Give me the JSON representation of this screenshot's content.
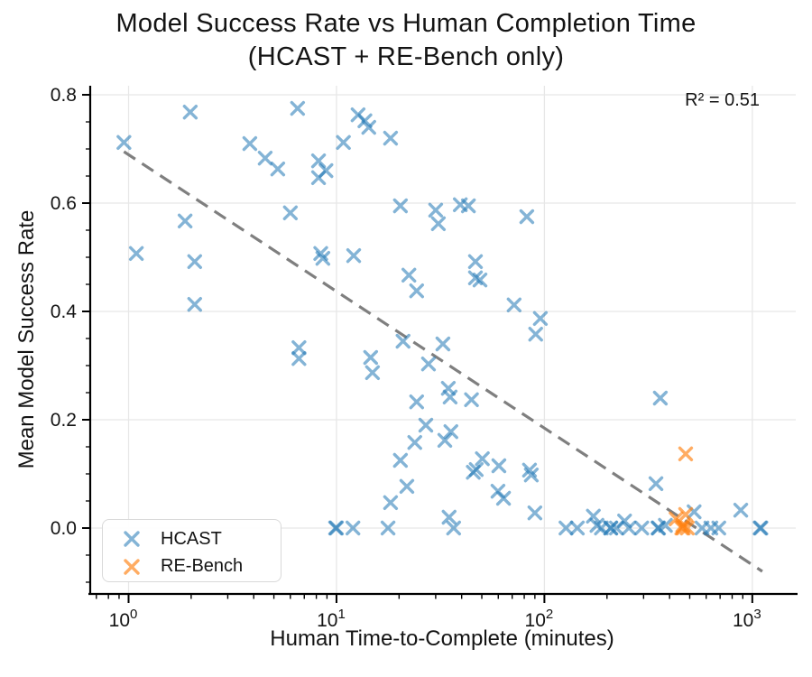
{
  "title": {
    "line1": "Model Success Rate vs Human Completion Time",
    "line2": "(HCAST + RE-Bench only)"
  },
  "annotation": {
    "r_squared": "R² = 0.51"
  },
  "axes": {
    "x_tick_exponents": [
      0,
      1,
      2,
      3
    ],
    "x_tick_base": "10",
    "y_ticks": [
      "0.0",
      "0.2",
      "0.4",
      "0.6",
      "0.8"
    ]
  },
  "legend": {
    "items": [
      {
        "label": "HCAST",
        "color": "#1f77b4",
        "opacity": 0.55
      },
      {
        "label": "RE-Bench",
        "color": "#ff7f0e",
        "opacity": 0.65
      }
    ]
  },
  "chart_data": {
    "type": "scatter",
    "title": "Model Success Rate vs Human Completion Time (HCAST + RE-Bench only)",
    "xlabel": "Human Time-to-Complete (minutes)",
    "ylabel": "Mean Model Success Rate",
    "xscale": "log",
    "xlim": [
      0.654,
      1586
    ],
    "ylim": [
      -0.1217,
      0.8167
    ],
    "grid": true,
    "legend_position": "lower left",
    "r_squared": 0.51,
    "trendline": {
      "style": "dashed",
      "color": "#7f7f7f",
      "x1": 0.95,
      "y1": 0.695,
      "x2": 1117,
      "y2": -0.08
    },
    "series": [
      {
        "name": "HCAST",
        "marker": "x",
        "color": "#1f77b4",
        "opacity": 0.55,
        "points": [
          [
            0.95,
            0.712
          ],
          [
            1.09,
            0.507
          ],
          [
            1.87,
            0.567
          ],
          [
            1.98,
            0.768
          ],
          [
            2.08,
            0.492
          ],
          [
            2.08,
            0.413
          ],
          [
            3.83,
            0.71
          ],
          [
            4.54,
            0.683
          ],
          [
            5.22,
            0.663
          ],
          [
            6.0,
            0.582
          ],
          [
            6.5,
            0.775
          ],
          [
            6.6,
            0.333
          ],
          [
            6.6,
            0.313
          ],
          [
            8.2,
            0.678
          ],
          [
            8.2,
            0.647
          ],
          [
            8.4,
            0.507
          ],
          [
            8.6,
            0.498
          ],
          [
            8.9,
            0.66
          ],
          [
            9.9,
            0.0
          ],
          [
            10.0,
            0.0
          ],
          [
            10.8,
            0.712
          ],
          [
            12.0,
            0.0
          ],
          [
            12.1,
            0.503
          ],
          [
            12.7,
            0.763
          ],
          [
            13.7,
            0.752
          ],
          [
            14.3,
            0.74
          ],
          [
            14.6,
            0.315
          ],
          [
            14.9,
            0.287
          ],
          [
            17.7,
            0.0
          ],
          [
            18.2,
            0.72
          ],
          [
            18.2,
            0.047
          ],
          [
            20.3,
            0.595
          ],
          [
            20.3,
            0.125
          ],
          [
            20.9,
            0.345
          ],
          [
            21.8,
            0.077
          ],
          [
            22.3,
            0.467
          ],
          [
            23.8,
            0.158
          ],
          [
            24.3,
            0.438
          ],
          [
            24.3,
            0.233
          ],
          [
            26.9,
            0.19
          ],
          [
            27.7,
            0.303
          ],
          [
            30.0,
            0.587
          ],
          [
            30.9,
            0.562
          ],
          [
            32.5,
            0.34
          ],
          [
            33.2,
            0.162
          ],
          [
            34.5,
            0.258
          ],
          [
            34.8,
            0.02
          ],
          [
            35.2,
            0.242
          ],
          [
            35.5,
            0.178
          ],
          [
            36.6,
            0.0
          ],
          [
            39.4,
            0.597
          ],
          [
            43.1,
            0.595
          ],
          [
            44.6,
            0.237
          ],
          [
            45.5,
            0.103
          ],
          [
            46.6,
            0.492
          ],
          [
            46.6,
            0.462
          ],
          [
            47.0,
            0.108
          ],
          [
            49.0,
            0.458
          ],
          [
            50.3,
            0.128
          ],
          [
            59.8,
            0.068
          ],
          [
            60.4,
            0.115
          ],
          [
            63.6,
            0.055
          ],
          [
            71.5,
            0.412
          ],
          [
            82.3,
            0.575
          ],
          [
            84.8,
            0.107
          ],
          [
            86.5,
            0.098
          ],
          [
            90.0,
            0.028
          ],
          [
            90.8,
            0.358
          ],
          [
            95.6,
            0.387
          ],
          [
            127,
            0.0
          ],
          [
            144,
            0.0
          ],
          [
            172,
            0.022
          ],
          [
            179,
            0.005
          ],
          [
            188,
            0.0
          ],
          [
            208,
            0.0
          ],
          [
            209,
            0.0
          ],
          [
            222,
            0.0
          ],
          [
            243,
            0.013
          ],
          [
            255,
            0.0
          ],
          [
            294,
            0.0
          ],
          [
            344,
            0.082
          ],
          [
            352,
            0.0
          ],
          [
            354,
            0.0
          ],
          [
            361,
            0.24
          ],
          [
            382,
            0.005
          ],
          [
            525,
            0.03
          ],
          [
            573,
            0.0
          ],
          [
            632,
            0.0
          ],
          [
            690,
            0.0
          ],
          [
            880,
            0.033
          ],
          [
            1090,
            0.0
          ],
          [
            1100,
            0.0
          ]
        ]
      },
      {
        "name": "RE-Bench",
        "marker": "x",
        "color": "#ff7f0e",
        "opacity": 0.65,
        "points": [
          [
            430,
            0.017
          ],
          [
            458,
            0.0
          ],
          [
            463,
            0.005
          ],
          [
            465,
            0.0
          ],
          [
            478,
            0.137
          ],
          [
            478,
            0.025
          ],
          [
            487,
            0.0
          ]
        ]
      }
    ]
  }
}
